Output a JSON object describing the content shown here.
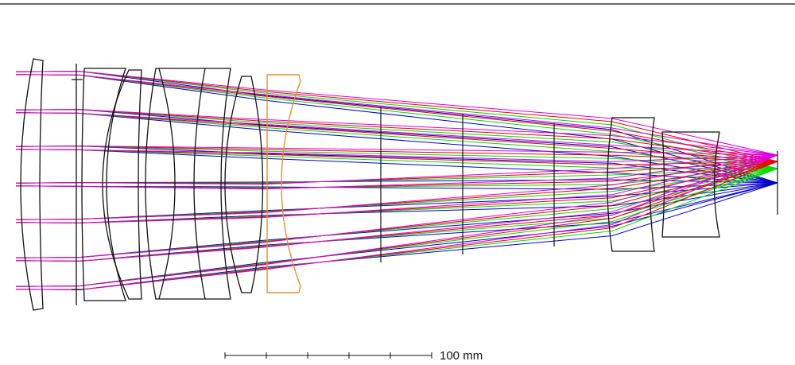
{
  "scale_bar": {
    "label": "100 mm"
  }
}
